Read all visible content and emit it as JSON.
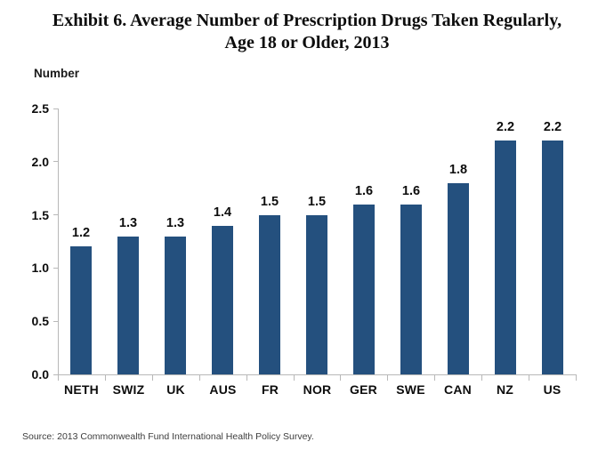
{
  "title": {
    "line1": "Exhibit 6. Average Number of Prescription Drugs Taken Regularly,",
    "line2": "Age 18 or Older, 2013"
  },
  "source": "Source: 2013 Commonwealth Fund International Health Policy Survey.",
  "colors": {
    "bar": "#24507E",
    "axis": "#B8B8B8",
    "text": "#0D0D0D",
    "source_text": "#3D3D3D"
  },
  "chart_data": {
    "type": "bar",
    "categories": [
      "NETH",
      "SWIZ",
      "UK",
      "AUS",
      "FR",
      "NOR",
      "GER",
      "SWE",
      "CAN",
      "NZ",
      "US"
    ],
    "values": [
      1.2,
      1.3,
      1.3,
      1.4,
      1.5,
      1.5,
      1.6,
      1.6,
      1.8,
      2.2,
      2.2
    ],
    "title": "Exhibit 6. Average Number of Prescription Drugs Taken Regularly, Age 18 or Older, 2013",
    "xlabel": "",
    "ylabel": "Number",
    "ylim": [
      0,
      2.5
    ],
    "yticks": [
      0.0,
      0.5,
      1.0,
      1.5,
      2.0,
      2.5
    ],
    "ytick_labels": [
      "0.0",
      "0.5",
      "1.0",
      "1.5",
      "2.0",
      "2.5"
    ],
    "grid": false,
    "legend": false,
    "data_labels": true
  }
}
